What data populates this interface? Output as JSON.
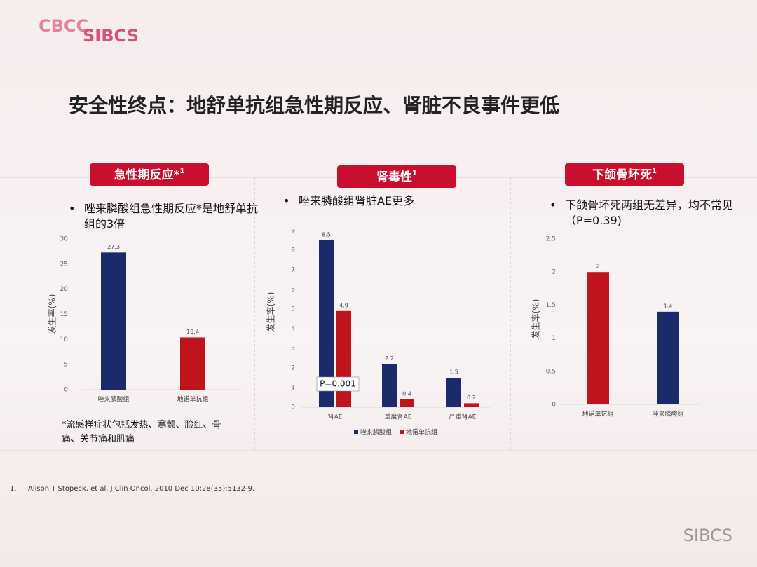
{
  "logo": {
    "left": "CBCC",
    "right": "SIBCS"
  },
  "title": "安全性终点：地舒单抗组急性期反应、肾脏不良事件更低",
  "reference": {
    "number": "1.",
    "text": "Alison T Stopeck, et al. J Clin Oncol. 2010 Dec 10;28(35):5132-9."
  },
  "watermark": "SIBCS",
  "chart_data": [
    {
      "type": "bar",
      "heading": "急性期反应*",
      "heading_note": "1",
      "bullet": "唑来膦酸组急性期反应*是地舒单抗组的3倍",
      "y_label": "发生率(%)",
      "categories": [
        "唑来膦酸组",
        "地诺单抗组"
      ],
      "values": [
        27.3,
        10.4
      ],
      "colors": [
        "#1b2a6b",
        "#c0141c"
      ],
      "ylim": [
        0,
        30
      ],
      "yticks": [
        0,
        5,
        10,
        15,
        20,
        25,
        30
      ],
      "grid": false,
      "note": "*流感样症状包括发热、寒颤、脸红、骨痛、关节痛和肌痛"
    },
    {
      "type": "bar",
      "heading": "肾毒性",
      "heading_note": "1",
      "bullet": "唑来膦酸组肾脏AE更多",
      "y_label": "发生率(%)",
      "categories": [
        "肾AE",
        "重度肾AE",
        "严重肾AE"
      ],
      "series": [
        {
          "name": "唑来膦酸组",
          "color": "#1b2a6b",
          "values": [
            8.5,
            2.2,
            1.5
          ]
        },
        {
          "name": "地诺单抗组",
          "color": "#c0141c",
          "values": [
            4.9,
            0.4,
            0.2
          ]
        }
      ],
      "ylim": [
        0,
        9
      ],
      "yticks": [
        0,
        1,
        2,
        3,
        4,
        5,
        6,
        7,
        8,
        9
      ],
      "grid": false,
      "legend": "bottom",
      "annotation": "P=0.001"
    },
    {
      "type": "bar",
      "heading": "下颌骨坏死",
      "heading_note": "1",
      "bullet": "下颌骨坏死两组无差异，均不常见（P=0.39)",
      "y_label": "发生率(%)",
      "categories": [
        "地诺单抗组",
        "唑来膦酸组"
      ],
      "values": [
        2,
        1.4
      ],
      "colors": [
        "#c0141c",
        "#1b2a6b"
      ],
      "ylim": [
        0,
        2.5
      ],
      "yticks": [
        0,
        0.5,
        1,
        1.5,
        2,
        2.5
      ],
      "grid": false
    }
  ]
}
